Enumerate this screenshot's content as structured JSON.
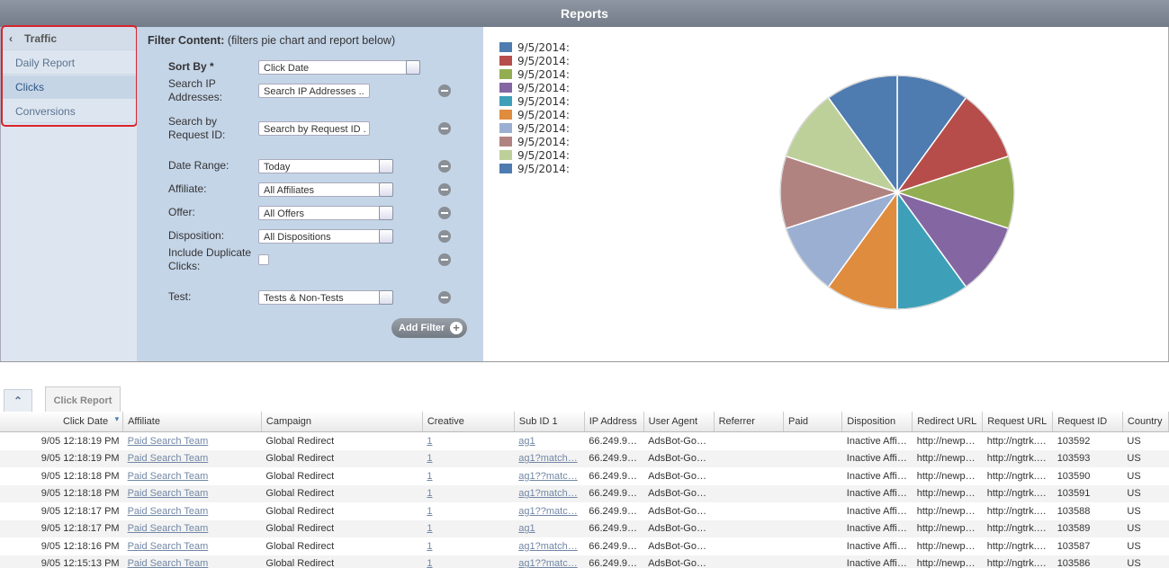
{
  "header": {
    "title": "Reports"
  },
  "sidebar": {
    "section": "Traffic",
    "items": [
      "Daily Report",
      "Clicks",
      "Conversions"
    ]
  },
  "filters": {
    "heading": "Filter Content:",
    "note": "(filters pie chart and report below)",
    "rows": [
      {
        "label": "Sort By *",
        "control": "select",
        "value": "Click Date"
      },
      {
        "label": "Search IP Addresses:",
        "control": "text",
        "value": "Search IP Addresses .."
      },
      {
        "label": "Search by Request ID:",
        "control": "text",
        "value": "Search by Request ID ."
      },
      {
        "label": "Date Range:",
        "control": "select",
        "value": "Today"
      },
      {
        "label": "Affiliate:",
        "control": "select",
        "value": "All Affiliates"
      },
      {
        "label": "Offer:",
        "control": "select",
        "value": "All Offers"
      },
      {
        "label": "Disposition:",
        "control": "select",
        "value": "All Dispositions"
      },
      {
        "label": "Include Duplicate Clicks:",
        "control": "checkbox"
      },
      {
        "label": "Test:",
        "control": "select",
        "value": "Tests & Non-Tests"
      }
    ],
    "add_button": "Add Filter"
  },
  "chart_data": {
    "type": "pie",
    "labels": [
      "9/5/2014:",
      "9/5/2014:",
      "9/5/2014:",
      "9/5/2014:",
      "9/5/2014:",
      "9/5/2014:",
      "9/5/2014:",
      "9/5/2014:",
      "9/5/2014:",
      "9/5/2014:"
    ],
    "values": [
      10,
      10,
      10,
      10,
      10,
      10,
      10,
      10,
      10,
      10
    ],
    "colors": [
      "#4e7bb0",
      "#b64d4a",
      "#93ae52",
      "#8467a2",
      "#3e9fb8",
      "#e08c3e",
      "#9aafd2",
      "#b08381",
      "#bdd09a",
      "#4e7bb0"
    ]
  },
  "report": {
    "tab": "Click Report",
    "columns": [
      "Click Date",
      "Affiliate",
      "Campaign",
      "Creative",
      "Sub ID 1",
      "IP Address",
      "User Agent",
      "Referrer",
      "Paid",
      "Disposition",
      "Redirect URL",
      "Request URL",
      "Request ID",
      "Country"
    ],
    "rows": [
      [
        "9/05 12:18:19 PM",
        "Paid Search Team",
        "Global Redirect",
        "1",
        "ag1",
        "66.249.9…",
        "AdsBot-Go…",
        "",
        "",
        "Inactive Affi…",
        "http://newp…",
        "http://ngtrk.…",
        "103592",
        "US"
      ],
      [
        "9/05 12:18:19 PM",
        "Paid Search Team",
        "Global Redirect",
        "1",
        "ag1?match…",
        "66.249.9…",
        "AdsBot-Go…",
        "",
        "",
        "Inactive Affi…",
        "http://newp…",
        "http://ngtrk.…",
        "103593",
        "US"
      ],
      [
        "9/05 12:18:18 PM",
        "Paid Search Team",
        "Global Redirect",
        "1",
        "ag1??matc…",
        "66.249.9…",
        "AdsBot-Go…",
        "",
        "",
        "Inactive Affi…",
        "http://newp…",
        "http://ngtrk.…",
        "103590",
        "US"
      ],
      [
        "9/05 12:18:18 PM",
        "Paid Search Team",
        "Global Redirect",
        "1",
        "ag1?match…",
        "66.249.9…",
        "AdsBot-Go…",
        "",
        "",
        "Inactive Affi…",
        "http://newp…",
        "http://ngtrk.…",
        "103591",
        "US"
      ],
      [
        "9/05 12:18:17 PM",
        "Paid Search Team",
        "Global Redirect",
        "1",
        "ag1??matc…",
        "66.249.9…",
        "AdsBot-Go…",
        "",
        "",
        "Inactive Affi…",
        "http://newp…",
        "http://ngtrk.…",
        "103588",
        "US"
      ],
      [
        "9/05 12:18:17 PM",
        "Paid Search Team",
        "Global Redirect",
        "1",
        "ag1",
        "66.249.9…",
        "AdsBot-Go…",
        "",
        "",
        "Inactive Affi…",
        "http://newp…",
        "http://ngtrk.…",
        "103589",
        "US"
      ],
      [
        "9/05 12:18:16 PM",
        "Paid Search Team",
        "Global Redirect",
        "1",
        "ag1?match…",
        "66.249.9…",
        "AdsBot-Go…",
        "",
        "",
        "Inactive Affi…",
        "http://newp…",
        "http://ngtrk.…",
        "103587",
        "US"
      ],
      [
        "9/05 12:15:13 PM",
        "Paid Search Team",
        "Global Redirect",
        "1",
        "ag1??matc…",
        "66.249.9…",
        "AdsBot-Go…",
        "",
        "",
        "Inactive Affi…",
        "http://newp…",
        "http://ngtrk.…",
        "103586",
        "US"
      ]
    ]
  }
}
